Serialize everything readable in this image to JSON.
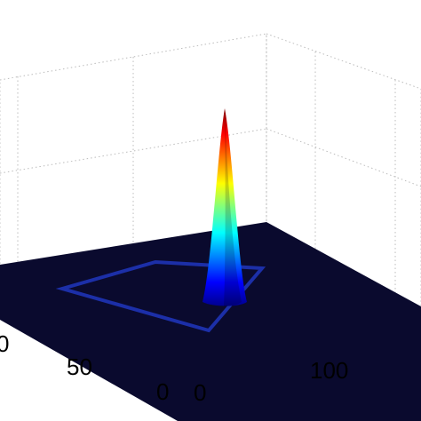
{
  "chart_data": {
    "type": "surface3d",
    "title": "",
    "xlabel": "",
    "ylabel": "",
    "zlabel": "",
    "colormap": "jet",
    "grid": true,
    "x_ticks": [
      "0",
      "100"
    ],
    "y_ticks": [
      "0",
      "50",
      "0"
    ],
    "xlim": [
      0,
      160
    ],
    "ylim": [
      0,
      160
    ],
    "surface": {
      "background_value": 0,
      "peak": {
        "x": 80,
        "y": 80,
        "relative_height": 1.0
      },
      "peak_shape": "narrow gaussian spike",
      "square_ridge": {
        "center": [
          80,
          80
        ],
        "half_width": 40,
        "relative_height": 0.01
      }
    },
    "colors": {
      "floor": "#0a0a2e",
      "ridge": "#1c2fa8",
      "peak_top": "#8b0000",
      "grid": "#bcbcbc"
    }
  }
}
